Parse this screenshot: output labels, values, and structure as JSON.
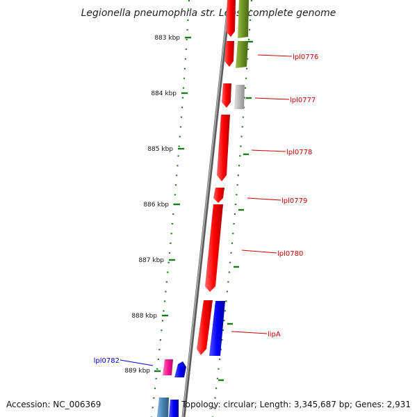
{
  "title": "Legionella pneumophila str. Lens, complete genome",
  "footer": {
    "accession": "Accession: NC_006369",
    "topology": "Topology: circular; Length: 3,345,687 bp; Genes: 2,931"
  },
  "ruler": {
    "labels": [
      "883 kbp",
      "884 kbp",
      "885 kbp",
      "886 kbp",
      "887 kbp",
      "888 kbp",
      "889 kbp"
    ]
  },
  "genes": [
    {
      "label": "lpl0776",
      "color": "#cc0000"
    },
    {
      "label": "lpl0777",
      "color": "#cc0000"
    },
    {
      "label": "lpl0778",
      "color": "#cc0000"
    },
    {
      "label": "lpl0779",
      "color": "#cc0000"
    },
    {
      "label": "lpl0780",
      "color": "#cc0000"
    },
    {
      "label": "lipA",
      "color": "#cc0000"
    },
    {
      "label": "lpl0782",
      "color": "#0000cc"
    }
  ],
  "colors": {
    "ruler": "#1a7a1a",
    "backbone": "#888888",
    "red": "#ff0000",
    "olive": "#6b8e23",
    "gray": "#b0b0b0",
    "blue": "#0000ff",
    "pink": "#ff1493",
    "steel": "#4682b4"
  }
}
